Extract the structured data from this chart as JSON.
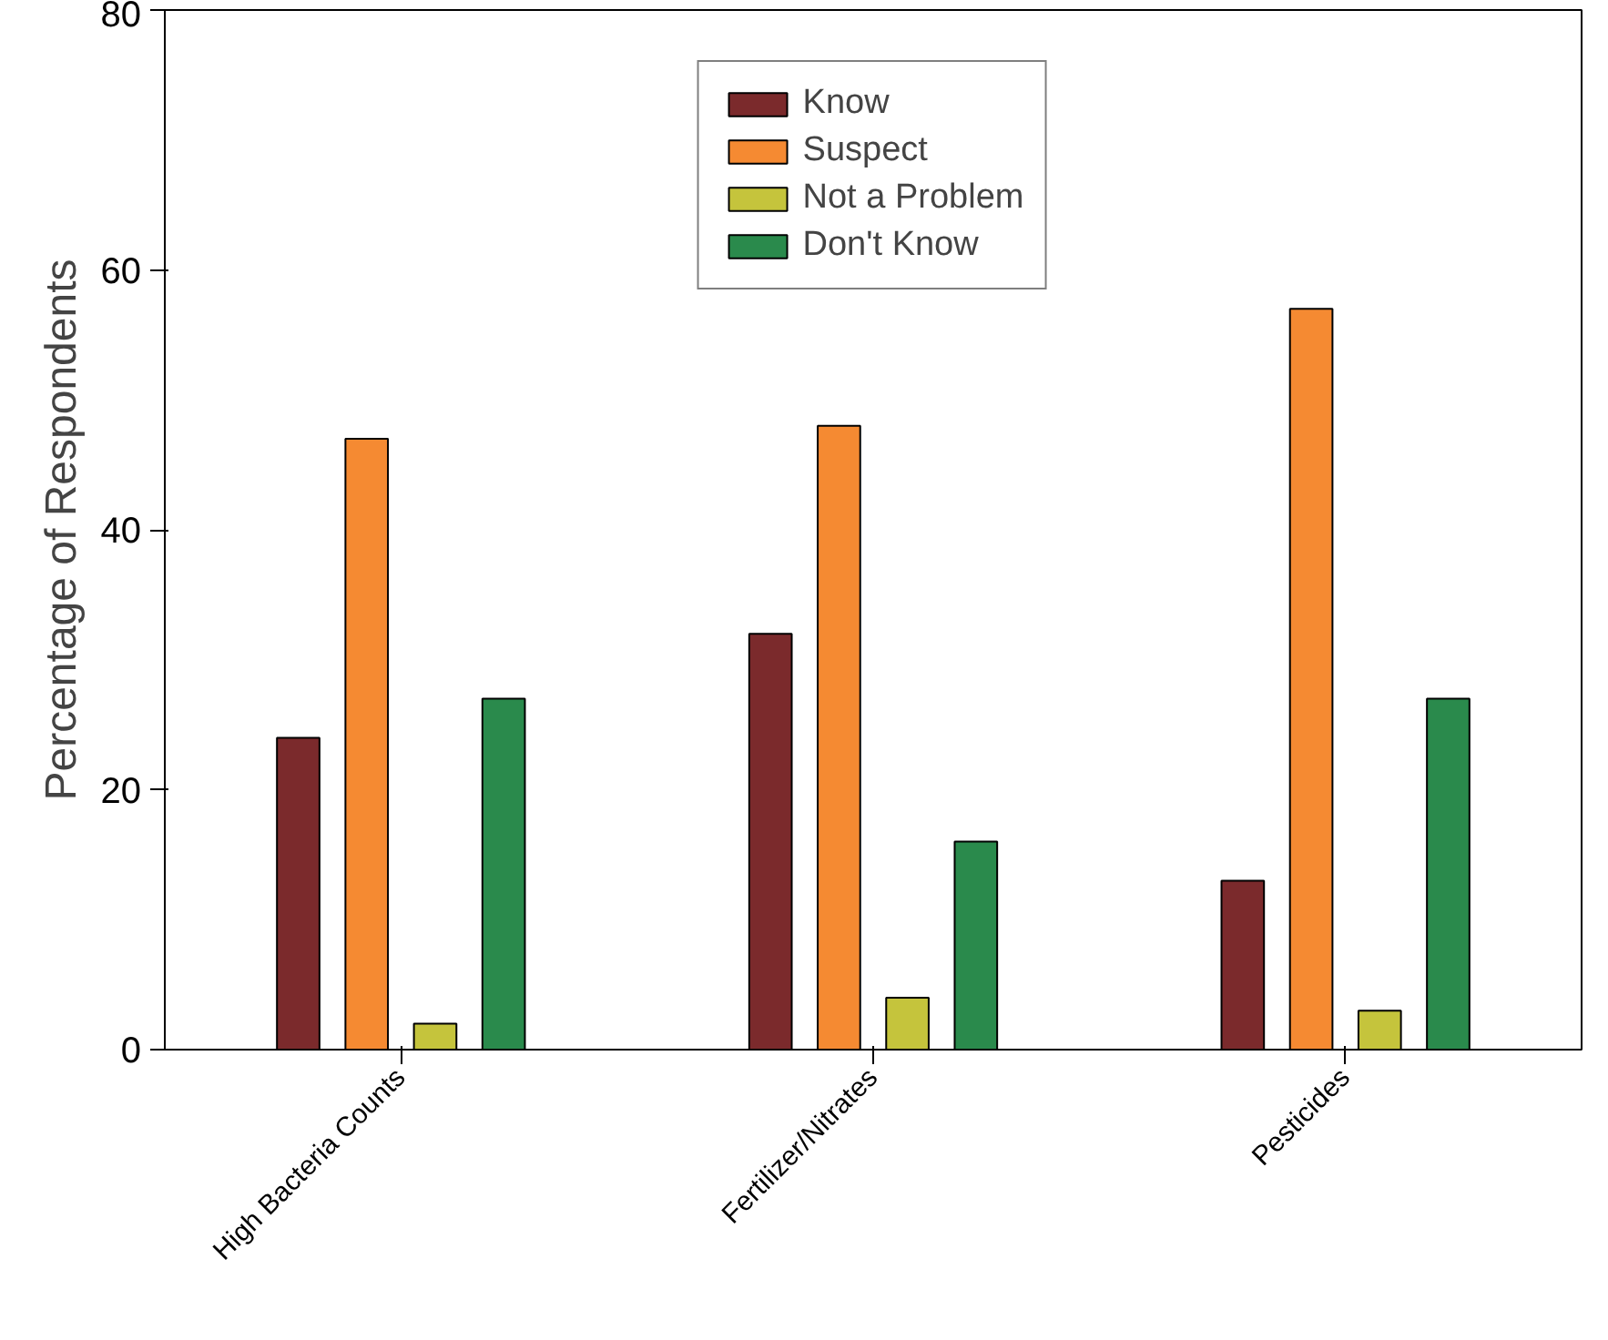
{
  "chart_data": {
    "type": "bar",
    "ylabel": "Percentage of Respondents",
    "categories": [
      "High Bacteria Counts",
      "Fertilizer/Nitrates",
      "Pesticides"
    ],
    "series": [
      {
        "name": "Know",
        "color": "#7b2a2c",
        "values": [
          24,
          32,
          13
        ]
      },
      {
        "name": "Suspect",
        "color": "#f58a32",
        "values": [
          47,
          48,
          57
        ]
      },
      {
        "name": "Not a Problem",
        "color": "#c5c43c",
        "values": [
          2,
          4,
          3
        ]
      },
      {
        "name": "Don't Know",
        "color": "#2a8a4c",
        "values": [
          27,
          16,
          27
        ]
      }
    ],
    "ylim": [
      0,
      80
    ],
    "yticks": [
      0,
      20,
      40,
      60,
      80
    ],
    "grid": false,
    "legend": "top"
  }
}
